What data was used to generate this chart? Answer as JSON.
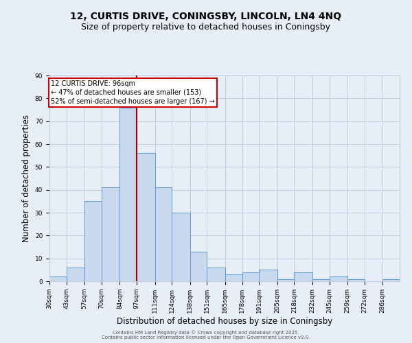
{
  "title": "12, CURTIS DRIVE, CONINGSBY, LINCOLN, LN4 4NQ",
  "subtitle": "Size of property relative to detached houses in Coningsby",
  "xlabel": "Distribution of detached houses by size in Coningsby",
  "ylabel": "Number of detached properties",
  "bins": [
    30,
    43,
    57,
    70,
    84,
    97,
    111,
    124,
    138,
    151,
    165,
    178,
    191,
    205,
    218,
    232,
    245,
    259,
    272,
    286,
    299
  ],
  "counts": [
    2,
    6,
    35,
    41,
    76,
    56,
    41,
    30,
    13,
    6,
    3,
    4,
    5,
    1,
    4,
    1,
    2,
    1,
    0,
    1
  ],
  "bar_color": "#c8d9ee",
  "bar_edge_color": "#5b9bd5",
  "grid_color": "#c0ccdd",
  "background_color": "#e8eef7",
  "vline_x": 97,
  "vline_color": "#a00000",
  "annotation_text": "12 CURTIS DRIVE: 96sqm\n← 47% of detached houses are smaller (153)\n52% of semi-detached houses are larger (167) →",
  "annotation_box_color": "#ffffff",
  "annotation_box_edge_color": "#cc0000",
  "ylim": [
    0,
    90
  ],
  "yticks": [
    0,
    10,
    20,
    30,
    40,
    50,
    60,
    70,
    80,
    90
  ],
  "footer1": "Contains HM Land Registry data © Crown copyright and database right 2025.",
  "footer2": "Contains public sector information licensed under the Open Government Licence v3.0.",
  "title_fontsize": 10,
  "subtitle_fontsize": 9,
  "tick_label_fontsize": 6.5,
  "axis_label_fontsize": 8.5,
  "annotation_fontsize": 7,
  "footer_fontsize": 5
}
